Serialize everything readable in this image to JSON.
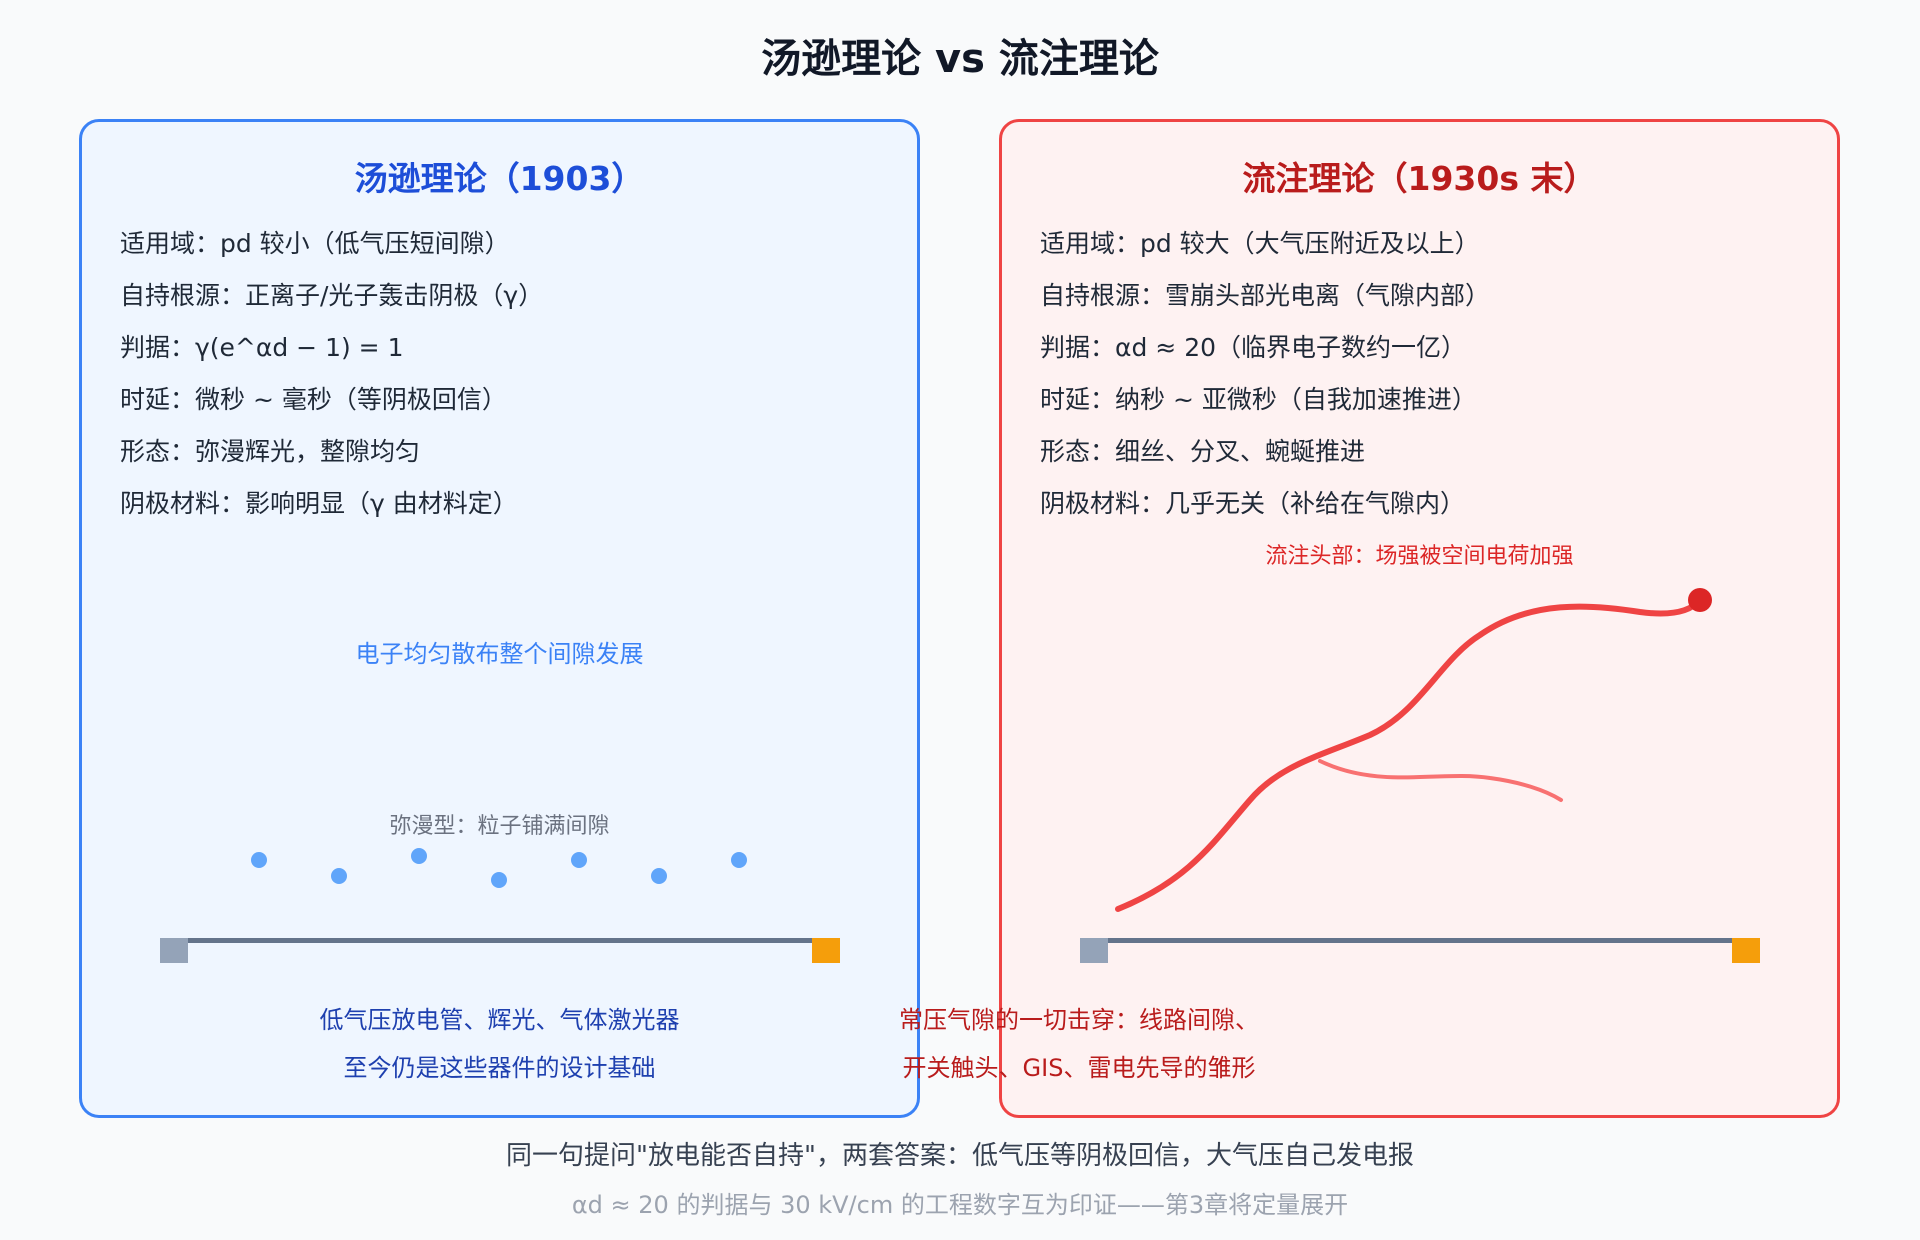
{
  "title": "汤逊理论 vs 流注理论",
  "colors": {
    "left_accent": "#3b82f6",
    "right_accent": "#ef4444",
    "cathode": "#94a3b8",
    "anode": "#f59e0b",
    "gap_line": "#64748b"
  },
  "left": {
    "title": "汤逊理论（1903）",
    "lines": [
      "适用域：pd 较小（低气压短间隙）",
      "自持根源：正离子/光子轰击阴极（γ）",
      "判据：γ(e^αd − 1) = 1",
      "时延：微秒 ~ 毫秒（等阴极回信）",
      "形态：弥漫辉光，整隙均匀",
      "阴极材料：影响明显（γ 由材料定）"
    ],
    "diagram_note": "电子均匀散布整个间隙发展",
    "diagram_label": "弥漫型：粒子铺满间隙",
    "applications": [
      "低气压放电管、辉光、气体激光器",
      "至今仍是这些器件的设计基础"
    ]
  },
  "right": {
    "title": "流注理论（1930s 末）",
    "lines": [
      "适用域：pd 较大（大气压附近及以上）",
      "自持根源：雪崩头部光电离（气隙内部）",
      "判据：αd ≈ 20（临界电子数约一亿）",
      "时延：纳秒 ~ 亚微秒（自我加速推进）",
      "形态：细丝、分叉、蜿蜒推进",
      "阴极材料：几乎无关（补给在气隙内）"
    ],
    "diagram_label": "流注头部：场强被空间电荷加强",
    "applications": [
      "常压气隙的一切击穿：线路间隙、",
      "开关触头、GIS、雷电先导的雏形"
    ]
  },
  "footer": {
    "line1": "同一句提问\"放电能否自持\"，两套答案：低气压等阴极回信，大气压自己发电报",
    "line2": "αd ≈ 20 的判据与 30 kV/cm 的工程数字互为印证——第3章将定量展开"
  }
}
